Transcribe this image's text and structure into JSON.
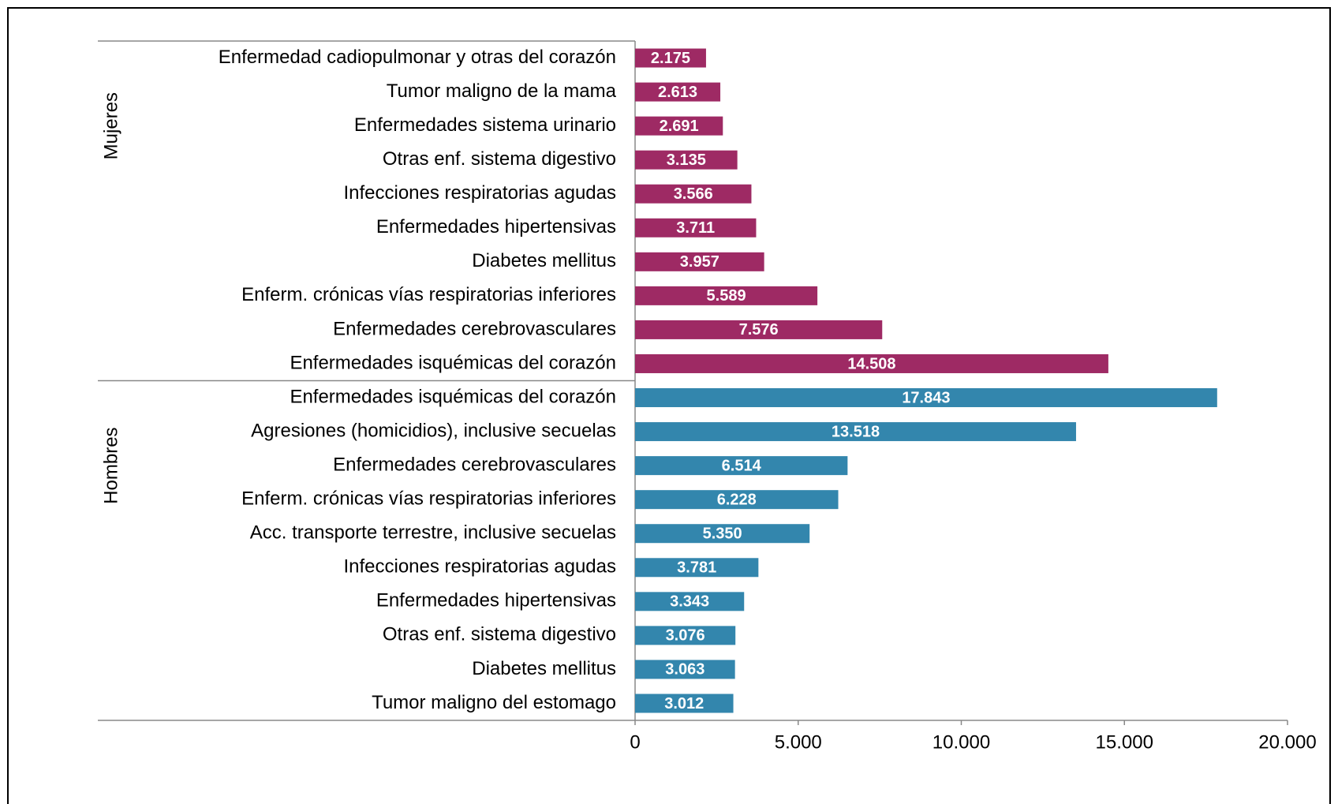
{
  "chart_data": {
    "type": "bar",
    "orientation": "horizontal",
    "groups": [
      {
        "name": "Mujeres",
        "color": "#9e2a64",
        "categories": [
          "Enfermedad cadiopulmonar y otras del corazón",
          "Tumor maligno de la mama",
          "Enfermedades sistema urinario",
          "Otras enf. sistema digestivo",
          "Infecciones respiratorias agudas",
          "Enfermedades hipertensivas",
          "Diabetes mellitus",
          "Enferm. crónicas vías respiratorias inferiores",
          "Enfermedades cerebrovasculares",
          "Enfermedades isquémicas del corazón"
        ],
        "values": [
          2175,
          2613,
          2691,
          3135,
          3566,
          3711,
          3957,
          5589,
          7576,
          14508
        ],
        "value_labels": [
          "2.175",
          "2.613",
          "2.691",
          "3.135",
          "3.566",
          "3.711",
          "3.957",
          "5.589",
          "7.576",
          "14.508"
        ]
      },
      {
        "name": "Hombres",
        "color": "#3386ad",
        "categories": [
          "Enfermedades isquémicas del corazón",
          "Agresiones (homicidios), inclusive secuelas",
          "Enfermedades cerebrovasculares",
          "Enferm. crónicas vías respiratorias inferiores",
          "Acc. transporte terrestre, inclusive secuelas",
          "Infecciones respiratorias agudas",
          "Enfermedades hipertensivas",
          "Otras enf. sistema digestivo",
          "Diabetes mellitus",
          "Tumor maligno del estomago"
        ],
        "values": [
          17843,
          13518,
          6514,
          6228,
          5350,
          3781,
          3343,
          3076,
          3063,
          3012
        ],
        "value_labels": [
          "17.843",
          "13.518",
          "6.514",
          "6.228",
          "5.350",
          "3.781",
          "3.343",
          "3.076",
          "3.063",
          "3.012"
        ]
      }
    ],
    "xlim": [
      0,
      20000
    ],
    "xticks": [
      0,
      {
        "value": 5000,
        "label": "5.000"
      },
      {
        "value": 10000,
        "label": "10.000"
      },
      {
        "value": 15000,
        "label": "15.000"
      },
      {
        "value": 20000,
        "label": "20.000"
      }
    ],
    "grid": false
  }
}
